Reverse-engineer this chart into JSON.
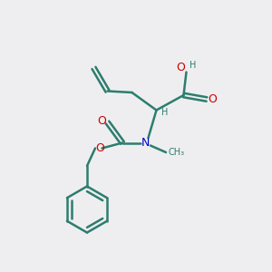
{
  "background_color": "#eeeef0",
  "bond_color": "#2d7d6e",
  "oxygen_color": "#cc0000",
  "nitrogen_color": "#0000cc",
  "hydrogen_color": "#2d7d6e",
  "line_width": 1.8,
  "figsize": [
    3.0,
    3.0
  ],
  "dpi": 100,
  "xlim": [
    0,
    10
  ],
  "ylim": [
    0,
    10
  ]
}
